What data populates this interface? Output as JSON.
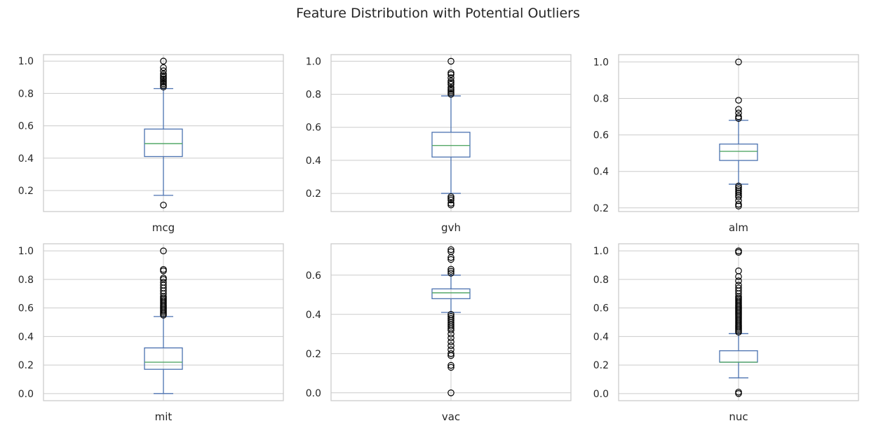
{
  "title": "Feature Distribution with Potential Outliers",
  "colors": {
    "box": "#4c72b0",
    "median": "#55a868",
    "flier": "#000000",
    "grid": "#cccccc",
    "frame": "#cccccc",
    "text": "#262626"
  },
  "chart_data": [
    {
      "type": "box",
      "label": "mcg",
      "ylim": [
        0.07,
        1.04
      ],
      "yticks": [
        "0.2",
        "0.4",
        "0.6",
        "0.8",
        "1.0"
      ],
      "whisker_low": 0.17,
      "q1": 0.41,
      "median": 0.49,
      "q3": 0.58,
      "whisker_high": 0.83,
      "outliers": [
        0.11,
        0.84,
        0.85,
        0.86,
        0.87,
        0.88,
        0.89,
        0.9,
        0.91,
        0.92,
        0.94,
        0.96,
        1.0
      ],
      "grid": true
    },
    {
      "type": "box",
      "label": "gvh",
      "ylim": [
        0.09,
        1.04
      ],
      "yticks": [
        "0.2",
        "0.4",
        "0.6",
        "0.8",
        "1.0"
      ],
      "whisker_low": 0.2,
      "q1": 0.42,
      "median": 0.49,
      "q3": 0.57,
      "whisker_high": 0.79,
      "outliers": [
        0.13,
        0.14,
        0.16,
        0.17,
        0.18,
        0.8,
        0.81,
        0.82,
        0.83,
        0.84,
        0.86,
        0.87,
        0.88,
        0.9,
        0.92,
        0.93,
        1.0
      ],
      "grid": true
    },
    {
      "type": "box",
      "label": "alm",
      "ylim": [
        0.18,
        1.04
      ],
      "yticks": [
        "0.2",
        "0.4",
        "0.6",
        "0.8",
        "1.0"
      ],
      "whisker_low": 0.33,
      "q1": 0.46,
      "median": 0.51,
      "q3": 0.55,
      "whisker_high": 0.68,
      "outliers": [
        0.21,
        0.22,
        0.24,
        0.26,
        0.27,
        0.28,
        0.29,
        0.3,
        0.31,
        0.32,
        0.69,
        0.7,
        0.72,
        0.74,
        0.79,
        1.0
      ],
      "grid": true
    },
    {
      "type": "box",
      "label": "mit",
      "ylim": [
        -0.05,
        1.05
      ],
      "yticks": [
        "0.0",
        "0.2",
        "0.4",
        "0.6",
        "0.8",
        "1.0"
      ],
      "whisker_low": 0.0,
      "q1": 0.17,
      "median": 0.22,
      "q3": 0.32,
      "whisker_high": 0.54,
      "outliers": [
        0.55,
        0.56,
        0.57,
        0.58,
        0.59,
        0.6,
        0.61,
        0.62,
        0.63,
        0.64,
        0.65,
        0.66,
        0.67,
        0.68,
        0.7,
        0.72,
        0.74,
        0.76,
        0.78,
        0.8,
        0.81,
        0.86,
        0.87,
        1.0
      ],
      "grid": true
    },
    {
      "type": "box",
      "label": "vac",
      "ylim": [
        -0.04,
        0.76
      ],
      "yticks": [
        "0.0",
        "0.2",
        "0.4",
        "0.6"
      ],
      "whisker_low": 0.41,
      "q1": 0.48,
      "median": 0.51,
      "q3": 0.53,
      "whisker_high": 0.6,
      "outliers": [
        0.0,
        0.13,
        0.14,
        0.19,
        0.2,
        0.22,
        0.24,
        0.26,
        0.28,
        0.3,
        0.32,
        0.33,
        0.34,
        0.35,
        0.36,
        0.37,
        0.38,
        0.39,
        0.4,
        0.61,
        0.62,
        0.63,
        0.68,
        0.69,
        0.72,
        0.73
      ],
      "grid": true
    },
    {
      "type": "box",
      "label": "nuc",
      "ylim": [
        -0.05,
        1.05
      ],
      "yticks": [
        "0.0",
        "0.2",
        "0.4",
        "0.6",
        "0.8",
        "1.0"
      ],
      "whisker_low": 0.11,
      "q1": 0.22,
      "median": 0.22,
      "q3": 0.3,
      "whisker_high": 0.42,
      "outliers": [
        0.0,
        0.01,
        0.43,
        0.44,
        0.45,
        0.46,
        0.47,
        0.48,
        0.49,
        0.5,
        0.51,
        0.52,
        0.53,
        0.54,
        0.55,
        0.56,
        0.57,
        0.58,
        0.59,
        0.6,
        0.61,
        0.62,
        0.63,
        0.64,
        0.65,
        0.66,
        0.67,
        0.68,
        0.7,
        0.72,
        0.74,
        0.76,
        0.79,
        0.82,
        0.86,
        0.99,
        1.0
      ],
      "grid": true
    }
  ]
}
